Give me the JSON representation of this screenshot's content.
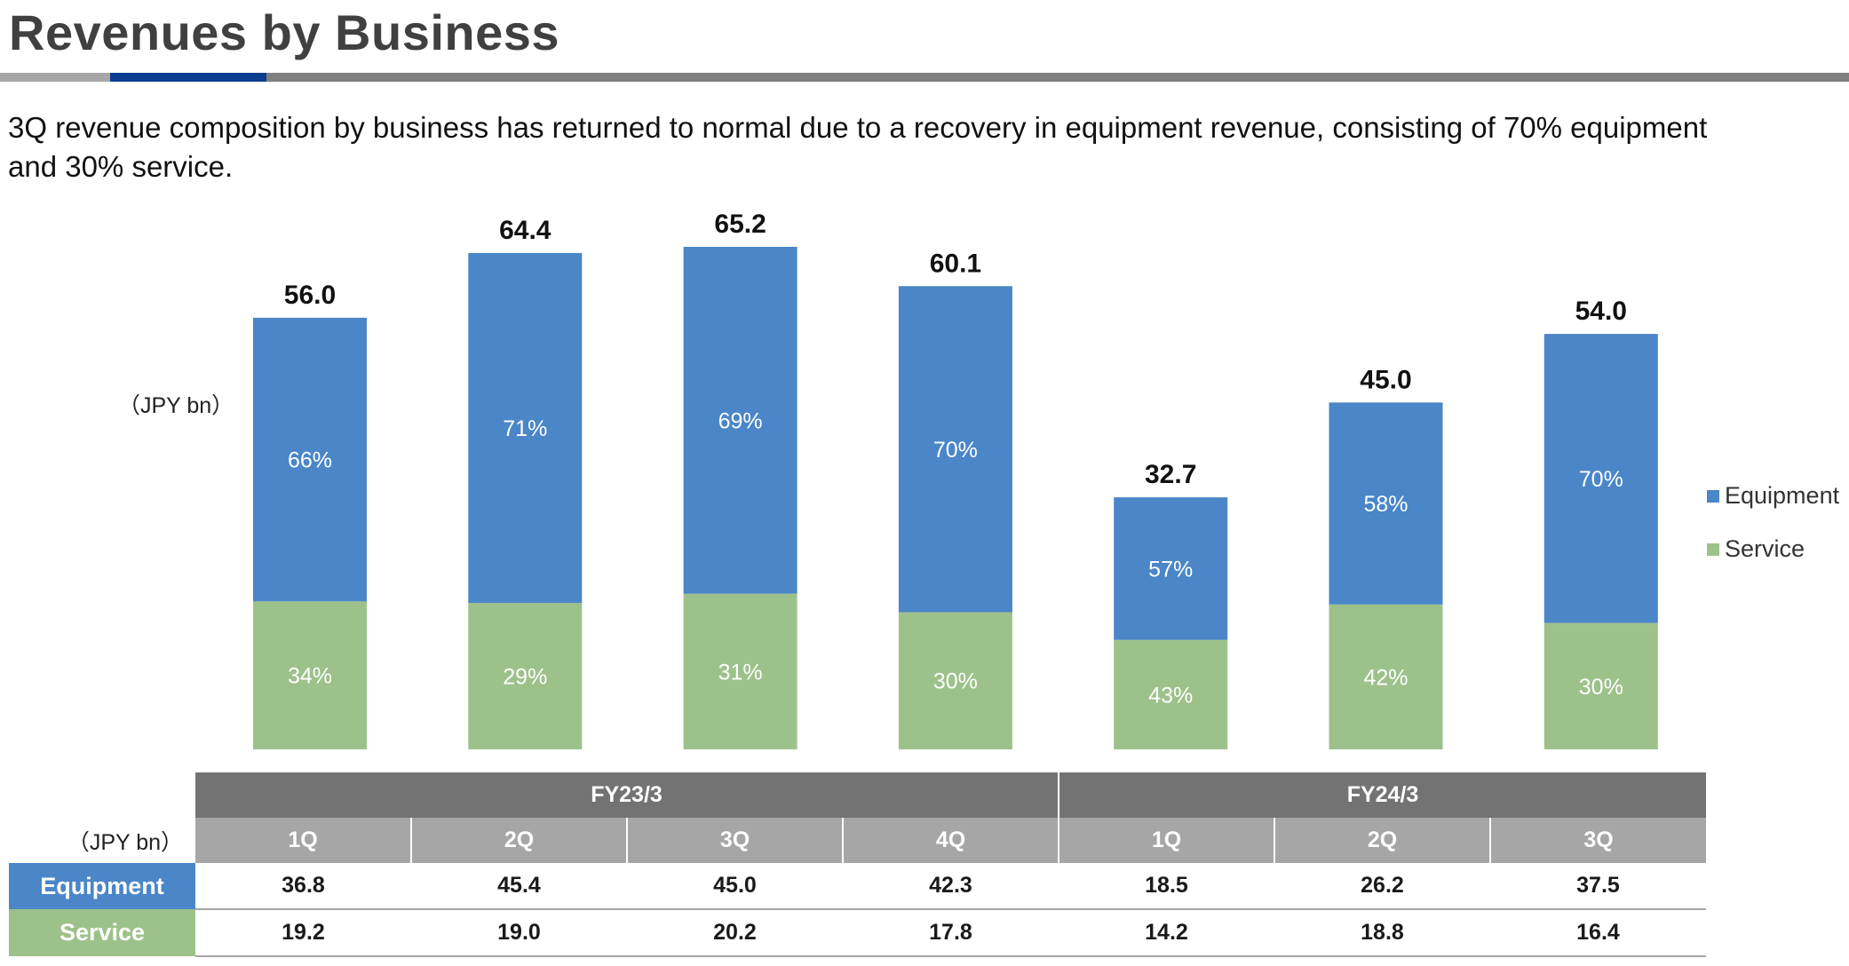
{
  "page": {
    "title": "Revenues by Business",
    "subtitle": "3Q revenue composition by business has returned to normal due to a recovery in equipment revenue, consisting of 70% equipment and 30% service."
  },
  "chart_data": {
    "type": "bar",
    "stacked": true,
    "unit_label": "（JPY bn）",
    "categories": [
      "FY23/3 1Q",
      "FY23/3 2Q",
      "FY23/3 3Q",
      "FY23/3 4Q",
      "FY24/3 1Q",
      "FY24/3 2Q",
      "FY24/3 3Q"
    ],
    "totals": [
      "56.0",
      "64.4",
      "65.2",
      "60.1",
      "32.7",
      "45.0",
      "54.0"
    ],
    "series": [
      {
        "name": "Equipment",
        "color": "#4a86c8",
        "values": [
          36.8,
          45.4,
          45.0,
          42.3,
          18.5,
          26.2,
          37.5
        ],
        "labels": [
          "66%",
          "71%",
          "69%",
          "70%",
          "57%",
          "58%",
          "70%"
        ]
      },
      {
        "name": "Service",
        "color": "#9dc18a",
        "values": [
          19.2,
          19.0,
          20.2,
          17.8,
          14.2,
          18.8,
          16.4
        ],
        "labels": [
          "34%",
          "29%",
          "31%",
          "30%",
          "43%",
          "42%",
          "30%"
        ]
      }
    ],
    "ylim": [
      0,
      65.2
    ],
    "legend_position": "right"
  },
  "table": {
    "unit": "（JPY bn）",
    "fiscal_years": [
      "FY23/3",
      "FY24/3"
    ],
    "quarters": [
      "1Q",
      "2Q",
      "3Q",
      "4Q",
      "1Q",
      "2Q",
      "3Q"
    ],
    "rows": [
      {
        "label": "Equipment",
        "values": [
          "36.8",
          "45.4",
          "45.0",
          "42.3",
          "18.5",
          "26.2",
          "37.5"
        ]
      },
      {
        "label": "Service",
        "values": [
          "19.2",
          "19.0",
          "20.2",
          "17.8",
          "14.2",
          "18.8",
          "16.4"
        ]
      }
    ]
  }
}
